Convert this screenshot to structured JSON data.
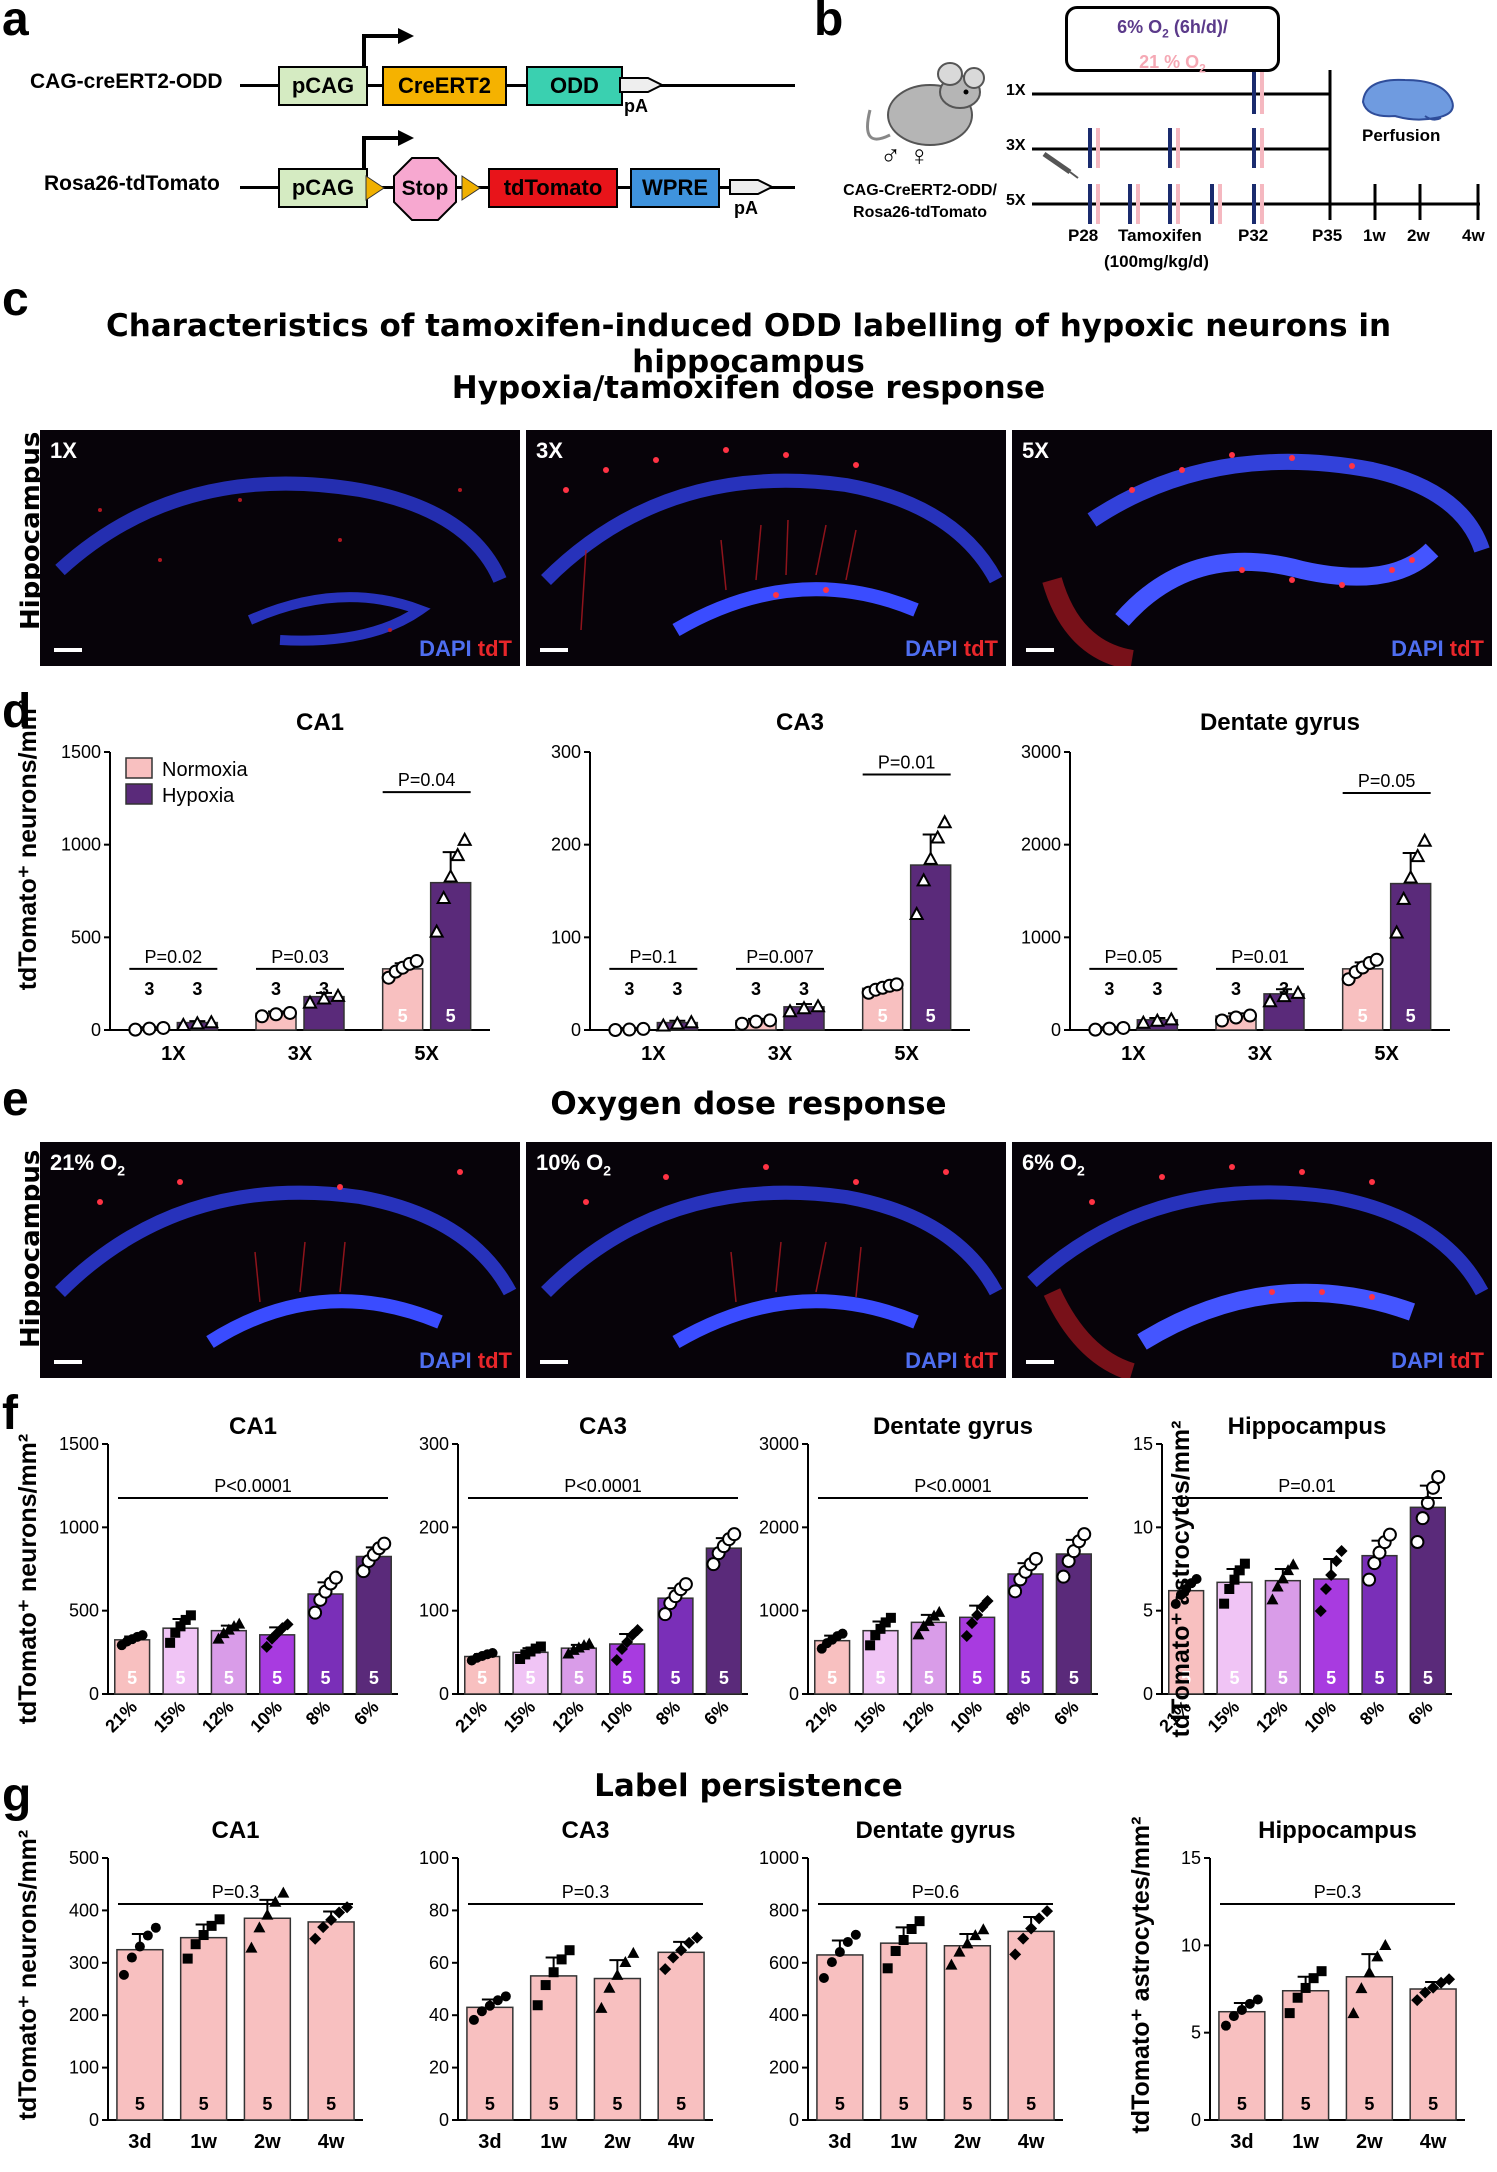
{
  "panels": {
    "a": "a",
    "b": "b",
    "c": "c",
    "d": "d",
    "e": "e",
    "f": "f",
    "g": "g"
  },
  "panel_a": {
    "row1_label": "CAG-creERT2-ODD",
    "row2_label": "Rosa26-tdTomato",
    "pcag": "pCAG",
    "creert2": "CreERT2",
    "odd": "ODD",
    "pa": "pA",
    "stop": "Stop",
    "tdtomato": "tdTomato",
    "wpre": "WPRE",
    "colors": {
      "pcag": "#d5ebc2",
      "creert2": "#f5b200",
      "odd": "#3ad0b0",
      "stop": "#f7a8d0",
      "tdtomato": "#e8141a",
      "wpre": "#3f93dd",
      "loxp": "#f0b000"
    }
  },
  "panel_b": {
    "box_line1": "6% O",
    "box_line1_sub": "2",
    "box_line1_tail": " (6h/d)/",
    "box_line2": "21 % O",
    "box_line2_sub": "2",
    "mouse_label1": "CAG-CreERT2-ODD/",
    "mouse_label2": "Rosa26-tdTomato",
    "sex": "♂ ♀",
    "rows": [
      "1X",
      "3X",
      "5X"
    ],
    "timepoints": [
      "P28",
      "P32",
      "P35",
      "1w",
      "2w",
      "4w"
    ],
    "tamoxifen1": "Tamoxifen",
    "tamoxifen2": "(100mg/kg/d)",
    "perfusion": "Perfusion",
    "colors": {
      "hypoxia": "#1a2b6e",
      "normoxia": "#f5b8c0",
      "brain": "#6f9be0"
    }
  },
  "main_title": "Characteristics of tamoxifen-induced ODD labelling of hypoxic neurons in hippocampus",
  "title_c": "Hypoxia/tamoxifen dose response",
  "side_label": "Hippocampus",
  "stain": {
    "dapi": "DAPI",
    "tdt": "tdT"
  },
  "micro_c": [
    "1X",
    "3X",
    "5X"
  ],
  "title_e": "Oxygen dose response",
  "micro_e": [
    {
      "main": "21% O",
      "sub": "2"
    },
    {
      "main": "10% O",
      "sub": "2"
    },
    {
      "main": "6% O",
      "sub": "2"
    }
  ],
  "title_g": "Label persistence",
  "ylabel_neurons": "tdTomato⁺ neurons/mm²",
  "ylabel_astro": "tdTomato⁺ astrocytes/mm²",
  "legend_d": {
    "normoxia": "Normoxia",
    "hypoxia": "Hypoxia"
  },
  "chart_data": [
    {
      "panel": "d",
      "type": "bar",
      "title": "CA1",
      "categories": [
        "1X",
        "3X",
        "5X"
      ],
      "ylim": [
        0,
        1500
      ],
      "yticks": [
        0,
        500,
        1000,
        1500
      ],
      "series": [
        {
          "name": "Normoxia",
          "values": [
            10,
            90,
            330
          ],
          "sem": [
            5,
            10,
            30
          ],
          "n": [
            3,
            3,
            5
          ],
          "color": "#f8c0c0"
        },
        {
          "name": "Hypoxia",
          "values": [
            40,
            180,
            795
          ],
          "sem": [
            8,
            20,
            165
          ],
          "n": [
            3,
            3,
            5
          ],
          "color": "#5a2a7a"
        }
      ],
      "pvalues": [
        "P=0.02",
        "P=0.03",
        "P=0.04"
      ]
    },
    {
      "panel": "d",
      "type": "bar",
      "title": "CA3",
      "categories": [
        "1X",
        "3X",
        "5X"
      ],
      "ylim": [
        0,
        300
      ],
      "yticks": [
        0,
        100,
        200,
        300
      ],
      "series": [
        {
          "name": "Normoxia",
          "values": [
            1,
            10,
            45
          ],
          "sem": [
            1,
            2,
            3
          ],
          "n": [
            3,
            3,
            5
          ],
          "color": "#f8c0c0"
        },
        {
          "name": "Hypoxia",
          "values": [
            8,
            25,
            178
          ],
          "sem": [
            2,
            3,
            33
          ],
          "n": [
            3,
            3,
            5
          ],
          "color": "#5a2a7a"
        }
      ],
      "pvalues": [
        "P=0.1",
        "P=0.007",
        "P=0.01"
      ]
    },
    {
      "panel": "d",
      "type": "bar",
      "title": "Dentate gyrus",
      "categories": [
        "1X",
        "3X",
        "5X"
      ],
      "ylim": [
        0,
        3000
      ],
      "yticks": [
        0,
        1000,
        2000,
        3000
      ],
      "series": [
        {
          "name": "Normoxia",
          "values": [
            20,
            150,
            660
          ],
          "sem": [
            10,
            30,
            70
          ],
          "n": [
            3,
            3,
            5
          ],
          "color": "#f8c0c0"
        },
        {
          "name": "Hypoxia",
          "values": [
            110,
            390,
            1580
          ],
          "sem": [
            20,
            50,
            330
          ],
          "n": [
            3,
            3,
            5
          ],
          "color": "#5a2a7a"
        }
      ],
      "pvalues": [
        "P=0.05",
        "P=0.01",
        "P=0.05"
      ]
    },
    {
      "panel": "f",
      "type": "bar",
      "title": "CA1",
      "categories": [
        "21%",
        "15%",
        "12%",
        "10%",
        "8%",
        "6%"
      ],
      "values": [
        325,
        395,
        380,
        355,
        600,
        825
      ],
      "sem": [
        20,
        55,
        30,
        45,
        70,
        55
      ],
      "n": [
        5,
        5,
        5,
        5,
        5,
        5
      ],
      "ylim": [
        0,
        1500
      ],
      "yticks": [
        0,
        500,
        1000,
        1500
      ],
      "pvalue": "P<0.0001"
    },
    {
      "panel": "f",
      "type": "bar",
      "title": "CA3",
      "categories": [
        "21%",
        "15%",
        "12%",
        "10%",
        "8%",
        "6%"
      ],
      "values": [
        45,
        50,
        55,
        60,
        115,
        175
      ],
      "sem": [
        3,
        5,
        4,
        12,
        12,
        12
      ],
      "n": [
        5,
        5,
        5,
        5,
        5,
        5
      ],
      "ylim": [
        0,
        300
      ],
      "yticks": [
        0,
        100,
        200,
        300
      ],
      "pvalue": "P<0.0001"
    },
    {
      "panel": "f",
      "type": "bar",
      "title": "Dentate gyrus",
      "categories": [
        "21%",
        "15%",
        "12%",
        "10%",
        "8%",
        "6%"
      ],
      "values": [
        640,
        760,
        860,
        920,
        1440,
        1680
      ],
      "sem": [
        60,
        110,
        90,
        140,
        130,
        170
      ],
      "n": [
        5,
        5,
        5,
        5,
        5,
        5
      ],
      "ylim": [
        0,
        3000
      ],
      "yticks": [
        0,
        1000,
        2000,
        3000
      ],
      "pvalue": "P<0.0001"
    },
    {
      "panel": "f",
      "type": "bar",
      "title": "Hippocampus",
      "categories": [
        "21%",
        "15%",
        "12%",
        "10%",
        "8%",
        "6%"
      ],
      "values": [
        6.2,
        6.7,
        6.8,
        6.9,
        8.3,
        11.2
      ],
      "sem": [
        0.5,
        0.8,
        0.7,
        1.2,
        0.9,
        1.3
      ],
      "n": [
        5,
        5,
        5,
        5,
        5,
        5
      ],
      "ylim": [
        0,
        15
      ],
      "yticks": [
        0,
        5,
        10,
        15
      ],
      "pvalue": "P=0.01"
    },
    {
      "panel": "g",
      "type": "bar",
      "title": "CA1",
      "categories": [
        "3d",
        "1w",
        "2w",
        "4w"
      ],
      "values": [
        325,
        348,
        385,
        378
      ],
      "sem": [
        30,
        25,
        35,
        20
      ],
      "n": [
        5,
        5,
        5,
        5
      ],
      "ylim": [
        0,
        500
      ],
      "yticks": [
        0,
        100,
        200,
        300,
        400,
        500
      ],
      "pvalue": "P=0.3"
    },
    {
      "panel": "g",
      "type": "bar",
      "title": "CA3",
      "categories": [
        "3d",
        "1w",
        "2w",
        "4w"
      ],
      "values": [
        43,
        55,
        54,
        64
      ],
      "sem": [
        3,
        7,
        7,
        4
      ],
      "n": [
        5,
        5,
        5,
        5
      ],
      "ylim": [
        0,
        100
      ],
      "yticks": [
        0,
        20,
        40,
        60,
        80,
        100
      ],
      "pvalue": "P=0.3"
    },
    {
      "panel": "g",
      "type": "bar",
      "title": "Dentate gyrus",
      "categories": [
        "3d",
        "1w",
        "2w",
        "4w"
      ],
      "values": [
        630,
        675,
        665,
        720
      ],
      "sem": [
        55,
        60,
        45,
        55
      ],
      "n": [
        5,
        5,
        5,
        5
      ],
      "ylim": [
        0,
        1000
      ],
      "yticks": [
        0,
        200,
        400,
        600,
        800,
        1000
      ],
      "pvalue": "P=0.6"
    },
    {
      "panel": "g",
      "type": "bar",
      "title": "Hippocampus",
      "categories": [
        "3d",
        "1w",
        "2w",
        "4w"
      ],
      "values": [
        6.2,
        7.4,
        8.2,
        7.5
      ],
      "sem": [
        0.5,
        0.8,
        1.3,
        0.4
      ],
      "n": [
        5,
        5,
        5,
        5
      ],
      "ylim": [
        0,
        15
      ],
      "yticks": [
        0,
        5,
        10,
        15
      ],
      "pvalue": "P=0.3"
    }
  ]
}
